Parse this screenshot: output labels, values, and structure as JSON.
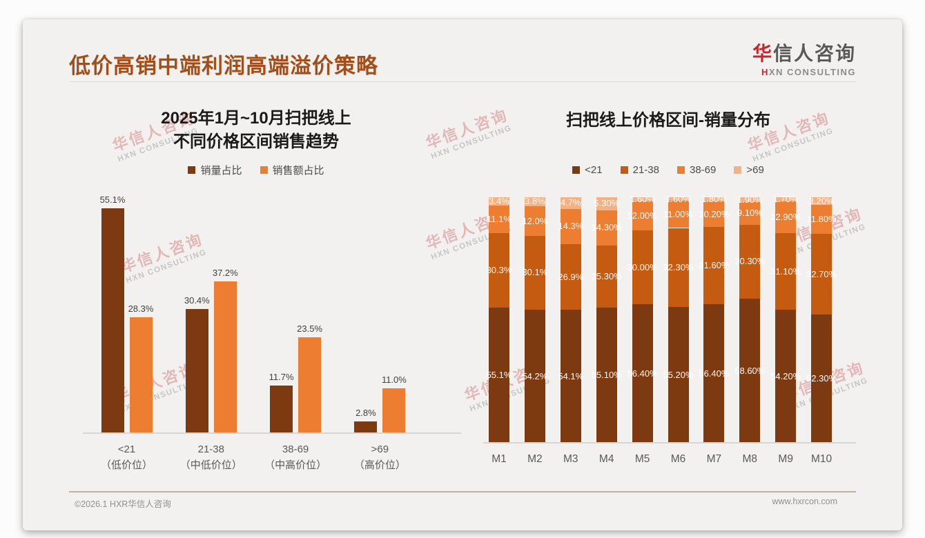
{
  "slide": {
    "title": "低价高销中端利润高端溢价策略",
    "logo": {
      "cn_highlight": "华",
      "cn_rest": "信人咨询",
      "en": "HXN CONSULTING"
    },
    "watermark": {
      "cn": "华信人咨询",
      "en": "HXN CONSULTING"
    },
    "footer": {
      "left": "©2026.1 HXR华信人咨询",
      "right": "www.hxrcon.com"
    }
  },
  "colors": {
    "page_title": "#A24E1A",
    "logo_red": "#C1272D",
    "slide_bg": "#F2F1EF",
    "dark_brown": "#7D3A10",
    "burnt_orange": "#C55A11",
    "orange": "#ED7D31",
    "peach": "#F4B183"
  },
  "chart_data": [
    {
      "type": "bar",
      "stacked": false,
      "title": "2025年1月~10月扫把线上 不同价格区间销售趋势",
      "title_lines": [
        "2025年1月~10月扫把线上",
        "不同价格区间销售趋势"
      ],
      "categories": [
        "<21",
        "21-38",
        "38-69",
        ">69"
      ],
      "category_sublabels": [
        "（低价位）",
        "（中低价位）",
        "（中高价位）",
        "（高价位）"
      ],
      "ylim": [
        0,
        60
      ],
      "grid": false,
      "legend_position": "top",
      "series": [
        {
          "name": "销量占比",
          "color": "#7D3A10",
          "values": [
            55.1,
            30.4,
            11.7,
            2.8
          ],
          "labels": [
            "55.1%",
            "30.4%",
            "11.7%",
            "2.8%"
          ]
        },
        {
          "name": "销售额占比",
          "color": "#ED7D31",
          "values": [
            28.3,
            37.2,
            23.5,
            11.0
          ],
          "labels": [
            "28.3%",
            "37.2%",
            "23.5%",
            "11.0%"
          ]
        }
      ]
    },
    {
      "type": "bar",
      "stacked": true,
      "title": "扫把线上价格区间-销量分布",
      "categories": [
        "M1",
        "M2",
        "M3",
        "M4",
        "M5",
        "M6",
        "M7",
        "M8",
        "M9",
        "M10"
      ],
      "ylim": [
        0,
        100
      ],
      "grid": false,
      "legend_position": "top",
      "series": [
        {
          "name": "<21",
          "color": "#7D3A10",
          "values": [
            55.1,
            54.2,
            54.1,
            55.1,
            56.4,
            55.2,
            56.4,
            58.6,
            54.2,
            52.3
          ],
          "labels": [
            "55.1%",
            "54.2%",
            "54.1%",
            "55.10%",
            "56.40%",
            "55.20%",
            "56.40%",
            "58.60%",
            "54.20%",
            "52.30%"
          ]
        },
        {
          "name": "21-38",
          "color": "#C55A11",
          "values": [
            30.3,
            30.1,
            26.9,
            25.3,
            30.0,
            32.3,
            31.6,
            30.3,
            31.1,
            32.7
          ],
          "labels": [
            "30.3%",
            "30.1%",
            "26.9%",
            "25.30%",
            "30.00%",
            "32.30%",
            "31.60%",
            "30.30%",
            "31.10%",
            "32.70%"
          ]
        },
        {
          "name": "38-69",
          "color": "#ED7D31",
          "values": [
            11.1,
            12.0,
            14.3,
            14.3,
            12.0,
            11.0,
            10.2,
            9.1,
            12.9,
            11.8
          ],
          "labels": [
            "11.1%",
            "12.0%",
            "14.3%",
            "14.30%",
            "12.00%",
            "11.00%",
            "10.20%",
            "9.10%",
            "12.90%",
            "11.80%"
          ]
        },
        {
          "name": ">69",
          "color": "#F4B183",
          "values": [
            3.4,
            3.8,
            4.7,
            5.3,
            1.6,
            1.6,
            1.8,
            1.9,
            1.7,
            3.2
          ],
          "labels": [
            "3.4%",
            "3.8%",
            "4.7%",
            "5.30%",
            "1.60%",
            "1.60%",
            "1.80%",
            "1.90%",
            "1.70%",
            "3.20%"
          ]
        }
      ]
    }
  ]
}
